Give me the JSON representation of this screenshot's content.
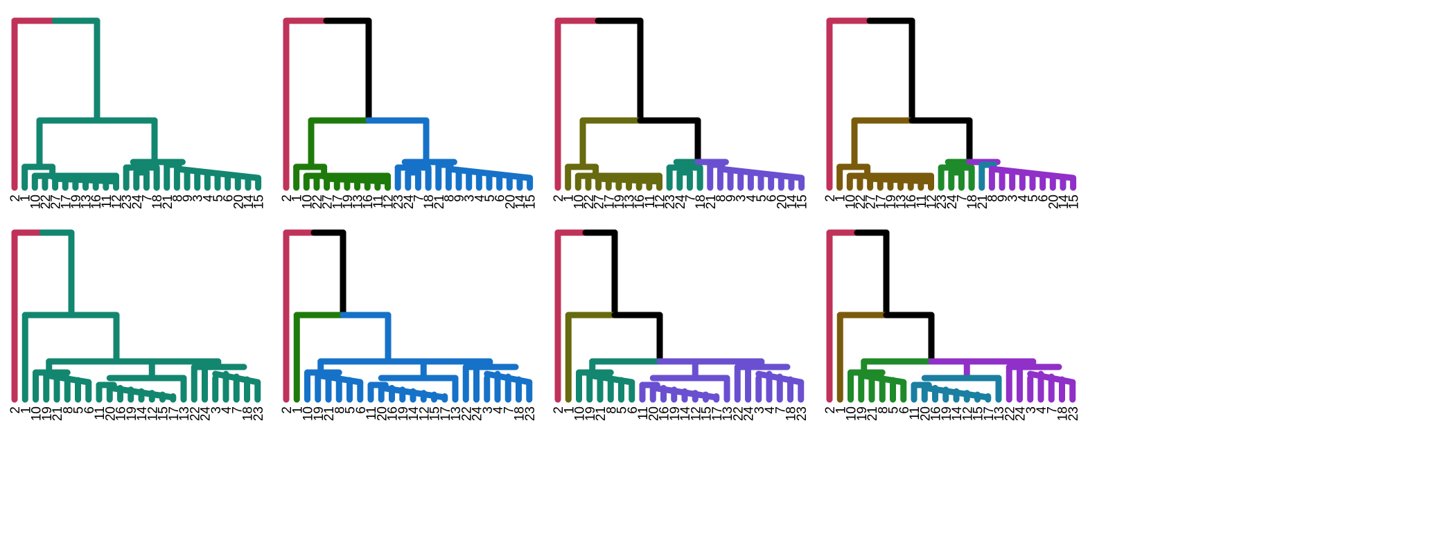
{
  "colors": {
    "outlier": "#C0325A",
    "teal": "#13866F",
    "green": "#1E7B0B",
    "blue": "#1672C8",
    "olive": "#676A0E",
    "purple": "#6A50D0",
    "brown": "#7A5B0C",
    "green2": "#1E8A2A",
    "teal2": "#1A7FA0",
    "violet": "#9030C8",
    "black": "#000000"
  },
  "panels": [
    {
      "name": "top-row-panel-1",
      "leaf_order": [
        "2",
        "1",
        "10",
        "22",
        "27",
        "17",
        "19",
        "13",
        "16",
        "11",
        "12",
        "23",
        "24",
        "7",
        "18",
        "21",
        "8",
        "9",
        "3",
        "4",
        "5",
        "6",
        "20",
        "14",
        "15"
      ],
      "edge_colors": {
        "outlier": "outlier",
        "rest": "teal",
        "left": "teal",
        "right": "teal",
        "top": "teal",
        "r1": "teal",
        "r2": "teal"
      }
    },
    {
      "name": "top-row-panel-2",
      "leaf_order": [
        "2",
        "1",
        "10",
        "22",
        "27",
        "17",
        "19",
        "13",
        "16",
        "11",
        "12",
        "23",
        "24",
        "7",
        "18",
        "21",
        "8",
        "9",
        "3",
        "4",
        "5",
        "6",
        "20",
        "14",
        "15"
      ],
      "edge_colors": {
        "outlier": "outlier",
        "rest": "black",
        "left": "green",
        "right": "blue",
        "top": "black",
        "r1": "blue",
        "r2": "blue"
      }
    },
    {
      "name": "top-row-panel-3",
      "leaf_order": [
        "2",
        "1",
        "10",
        "22",
        "27",
        "17",
        "19",
        "13",
        "16",
        "11",
        "12",
        "23",
        "24",
        "7",
        "18",
        "21",
        "8",
        "9",
        "3",
        "4",
        "5",
        "6",
        "20",
        "14",
        "15"
      ],
      "edge_colors": {
        "outlier": "outlier",
        "rest": "black",
        "left": "olive",
        "right": "black",
        "top": "black",
        "r1": "teal",
        "r2": "purple"
      }
    },
    {
      "name": "top-row-panel-4",
      "leaf_order": [
        "2",
        "1",
        "10",
        "22",
        "27",
        "17",
        "19",
        "13",
        "16",
        "11",
        "12",
        "23",
        "24",
        "7",
        "18",
        "21",
        "8",
        "9",
        "3",
        "4",
        "5",
        "6",
        "20",
        "14",
        "15"
      ],
      "edge_colors": {
        "outlier": "outlier",
        "rest": "black",
        "left": "brown",
        "right": "black",
        "top": "black",
        "r1": "green2",
        "r2": "violet",
        "r21": "teal2"
      }
    },
    {
      "name": "bottom-row-panel-1",
      "leaf_order": [
        "2",
        "1",
        "10",
        "19",
        "21",
        "8",
        "5",
        "6",
        "11",
        "20",
        "16",
        "19",
        "14",
        "12",
        "15",
        "17",
        "13",
        "22",
        "24",
        "3",
        "4",
        "7",
        "18",
        "23"
      ],
      "edge_colors": {
        "outlier": "outlier",
        "rest": "teal",
        "left": "teal",
        "right": "teal",
        "b1": "teal",
        "b2": "teal",
        "b3": "teal"
      }
    },
    {
      "name": "bottom-row-panel-2",
      "leaf_order": [
        "2",
        "1",
        "10",
        "19",
        "21",
        "8",
        "5",
        "6",
        "11",
        "20",
        "16",
        "19",
        "14",
        "12",
        "15",
        "17",
        "13",
        "22",
        "24",
        "3",
        "4",
        "7",
        "18",
        "23"
      ],
      "edge_colors": {
        "outlier": "outlier",
        "rest": "black",
        "left": "green",
        "right": "blue",
        "b1": "blue",
        "b2": "blue",
        "b3": "blue"
      }
    },
    {
      "name": "bottom-row-panel-3",
      "leaf_order": [
        "2",
        "1",
        "10",
        "19",
        "21",
        "8",
        "5",
        "6",
        "11",
        "20",
        "16",
        "19",
        "14",
        "12",
        "15",
        "17",
        "13",
        "22",
        "24",
        "3",
        "4",
        "7",
        "18",
        "23"
      ],
      "edge_colors": {
        "outlier": "outlier",
        "rest": "black",
        "left": "olive",
        "right": "black",
        "b1": "teal",
        "b2": "purple",
        "b3": "purple"
      }
    },
    {
      "name": "bottom-row-panel-4",
      "leaf_order": [
        "2",
        "1",
        "10",
        "19",
        "21",
        "8",
        "5",
        "6",
        "11",
        "20",
        "16",
        "19",
        "14",
        "12",
        "15",
        "17",
        "13",
        "22",
        "24",
        "3",
        "4",
        "7",
        "18",
        "23"
      ],
      "edge_colors": {
        "outlier": "outlier",
        "rest": "black",
        "left": "brown",
        "right": "black",
        "b1": "green2",
        "b2": "teal2",
        "b3": "violet"
      }
    }
  ]
}
